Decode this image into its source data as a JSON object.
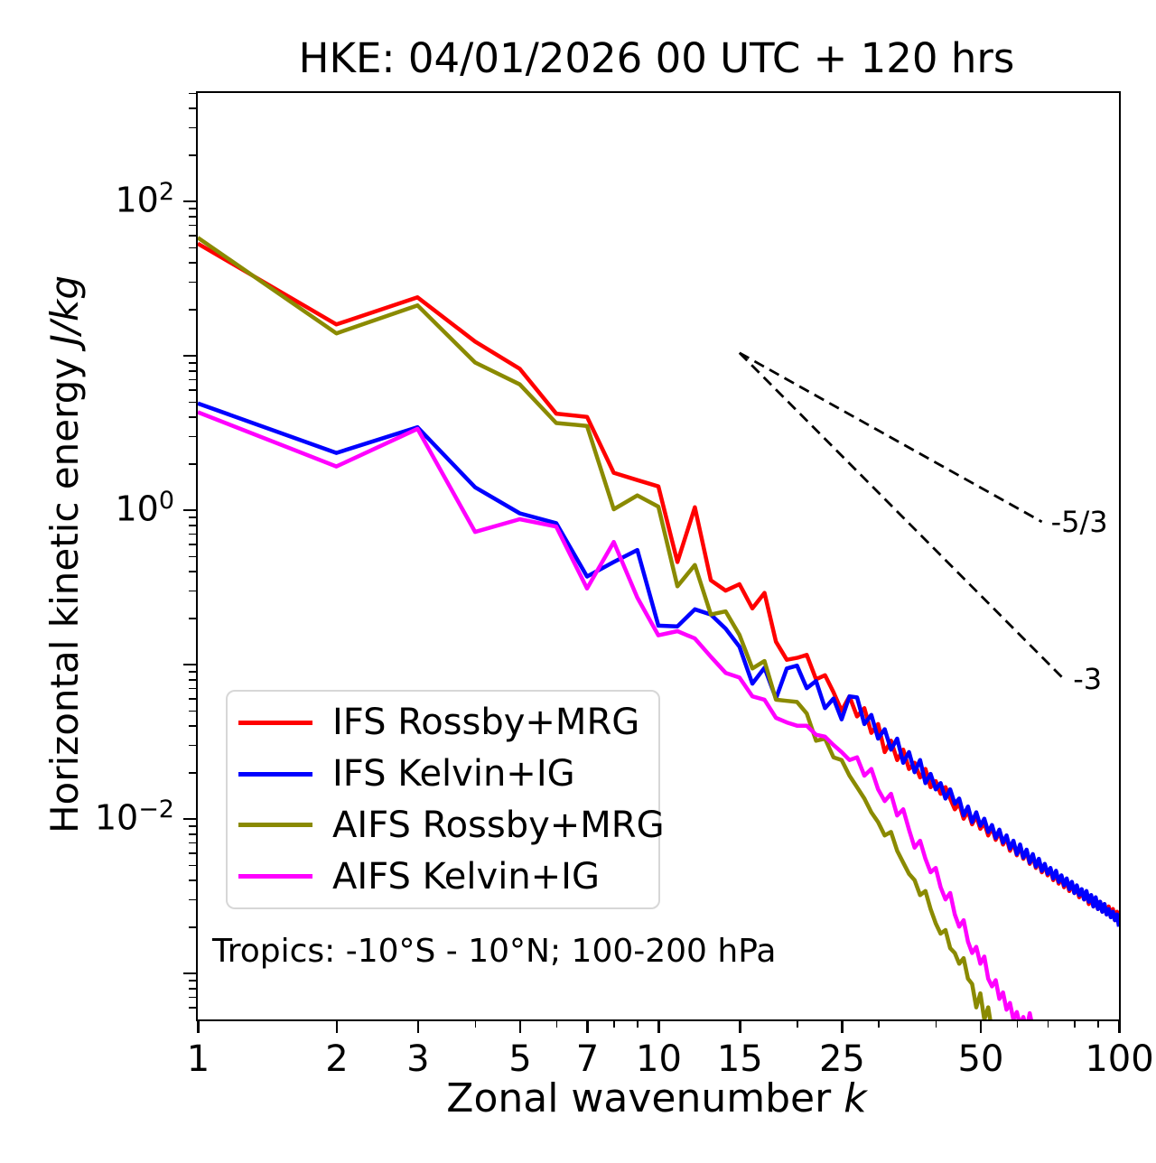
{
  "title": "HKE: 04/01/2026 00 UTC + 120 hrs",
  "annotation": "Tropics: -10°S - 10°N; 100-200 hPa",
  "axes": {
    "xlabel_text": "Zonal wavenumber ",
    "xlabel_math": "k",
    "ylabel_text": "Horizontal kinetic energy ",
    "ylabel_math": "J/kg",
    "xlim": [
      1,
      100
    ],
    "ylim_log10": [
      -3.3,
      2.7
    ],
    "x_major_ticks": [
      1,
      2,
      3,
      5,
      7,
      10,
      15,
      25,
      50,
      100
    ],
    "x_major_tick_labels": [
      "1",
      "2",
      "3",
      "5",
      "7",
      "10",
      "15",
      "25",
      "50",
      "100"
    ],
    "x_minor_ticks": [
      4,
      6,
      8,
      9,
      20,
      30,
      40,
      60,
      70,
      80,
      90
    ],
    "y_major_tick_exponents": [
      2,
      1,
      0,
      -1,
      -2,
      -3
    ],
    "y_labeled_exponents": [
      2,
      0,
      -2
    ],
    "grid": "off",
    "legend_position": "lower-left-inside"
  },
  "chart_data": {
    "type": "line",
    "xscale": "log",
    "yscale": "log",
    "title": "HKE: 04/01/2026 00 UTC + 120 hrs",
    "xlabel": "Zonal wavenumber k",
    "ylabel": "Horizontal kinetic energy J/kg",
    "x": [
      1,
      2,
      3,
      4,
      5,
      6,
      7,
      8,
      9,
      10,
      11,
      12,
      13,
      14,
      15,
      16,
      17,
      18,
      19,
      20,
      21,
      22,
      23,
      24,
      25,
      26,
      27,
      28,
      29,
      30,
      31,
      32,
      33,
      34,
      35,
      36,
      37,
      38,
      39,
      40,
      41,
      42,
      43,
      44,
      45,
      46,
      47,
      48,
      49,
      50,
      51,
      52,
      53,
      54,
      55,
      56,
      57,
      58,
      59,
      60,
      61,
      62,
      63,
      64,
      65,
      66,
      67,
      68,
      69,
      70,
      71,
      72,
      73,
      74,
      75,
      76,
      77,
      78,
      79,
      80,
      81,
      82,
      83,
      84,
      85,
      86,
      87,
      88,
      89,
      90,
      91,
      92,
      93,
      94,
      95,
      96,
      97,
      98,
      99,
      100
    ],
    "series": [
      {
        "name": "IFS Rossby+MRG",
        "color": "#ff0000",
        "values": [
          53,
          15.9,
          23.8,
          12.3,
          8.2,
          4.2,
          4.0,
          1.74,
          1.56,
          1.42,
          0.46,
          1.04,
          0.35,
          0.3,
          0.33,
          0.23,
          0.29,
          0.14,
          0.107,
          0.11,
          0.115,
          0.08,
          0.085,
          0.066,
          0.05,
          0.062,
          0.046,
          0.052,
          0.036,
          0.041,
          0.027,
          0.032,
          0.024,
          0.028,
          0.021,
          0.023,
          0.0185,
          0.021,
          0.016,
          0.0175,
          0.0145,
          0.016,
          0.0135,
          0.0115,
          0.0125,
          0.01,
          0.0112,
          0.0092,
          0.0104,
          0.0086,
          0.0094,
          0.0078,
          0.0088,
          0.0073,
          0.0082,
          0.0068,
          0.0075,
          0.0062,
          0.007,
          0.0058,
          0.0066,
          0.0055,
          0.0061,
          0.0051,
          0.0057,
          0.0048,
          0.0053,
          0.0045,
          0.005,
          0.0043,
          0.0047,
          0.004,
          0.0044,
          0.0038,
          0.0042,
          0.0036,
          0.004,
          0.0034,
          0.0038,
          0.0033,
          0.0036,
          0.0031,
          0.0034,
          0.003,
          0.0033,
          0.0028,
          0.0031,
          0.0027,
          0.003,
          0.0026,
          0.0029,
          0.0025,
          0.0028,
          0.0024,
          0.0027,
          0.0023,
          0.0026,
          0.0022,
          0.0025,
          0.0021
        ]
      },
      {
        "name": "IFS Kelvin+IG",
        "color": "#0000ff",
        "values": [
          4.9,
          2.34,
          3.43,
          1.4,
          0.95,
          0.82,
          0.37,
          0.46,
          0.55,
          0.178,
          0.176,
          0.227,
          0.21,
          0.17,
          0.13,
          0.075,
          0.095,
          0.06,
          0.094,
          0.098,
          0.07,
          0.078,
          0.052,
          0.06,
          0.044,
          0.062,
          0.061,
          0.041,
          0.047,
          0.033,
          0.038,
          0.028,
          0.033,
          0.023,
          0.027,
          0.02,
          0.024,
          0.017,
          0.0195,
          0.0155,
          0.017,
          0.0135,
          0.0155,
          0.0125,
          0.0135,
          0.0105,
          0.012,
          0.0095,
          0.011,
          0.009,
          0.01,
          0.0082,
          0.0091,
          0.0075,
          0.0085,
          0.007,
          0.0078,
          0.0064,
          0.0072,
          0.0059,
          0.0068,
          0.0056,
          0.0063,
          0.0052,
          0.0059,
          0.0049,
          0.0055,
          0.0046,
          0.0051,
          0.0044,
          0.0048,
          0.0041,
          0.0046,
          0.0039,
          0.0043,
          0.0037,
          0.0041,
          0.0035,
          0.0039,
          0.0033,
          0.0037,
          0.0032,
          0.0035,
          0.003,
          0.0034,
          0.0029,
          0.0032,
          0.0027,
          0.0031,
          0.0026,
          0.0029,
          0.0025,
          0.0028,
          0.0024,
          0.0026,
          0.0023,
          0.0025,
          0.0022,
          0.0024,
          0.002
        ]
      },
      {
        "name": "AIFS Rossby+MRG",
        "color": "#8a8a00",
        "values": [
          58,
          13.9,
          21.1,
          9.0,
          6.5,
          3.65,
          3.5,
          1.01,
          1.24,
          1.05,
          0.32,
          0.44,
          0.21,
          0.22,
          0.155,
          0.094,
          0.105,
          0.059,
          0.058,
          0.057,
          0.048,
          0.032,
          0.033,
          0.025,
          0.024,
          0.019,
          0.016,
          0.0135,
          0.011,
          0.0095,
          0.0078,
          0.0082,
          0.0062,
          0.0052,
          0.0044,
          0.004,
          0.0032,
          0.0034,
          0.0026,
          0.0021,
          0.0018,
          0.0019,
          0.00145,
          0.00135,
          0.00115,
          0.00125,
          0.00092,
          0.00085,
          0.0006,
          0.00074,
          0.0005,
          0.0006,
          0.00042
        ]
      },
      {
        "name": "AIFS Kelvin+IG",
        "color": "#ff00ff",
        "values": [
          4.29,
          1.91,
          3.35,
          0.72,
          0.87,
          0.78,
          0.31,
          0.62,
          0.27,
          0.154,
          0.164,
          0.147,
          0.112,
          0.088,
          0.082,
          0.062,
          0.059,
          0.045,
          0.042,
          0.04,
          0.04,
          0.035,
          0.034,
          0.03,
          0.027,
          0.024,
          0.025,
          0.019,
          0.021,
          0.0155,
          0.013,
          0.0145,
          0.0105,
          0.0115,
          0.0085,
          0.0065,
          0.0072,
          0.0055,
          0.0045,
          0.0048,
          0.0036,
          0.003,
          0.0033,
          0.0024,
          0.002,
          0.0022,
          0.0016,
          0.00135,
          0.00148,
          0.00115,
          0.00128,
          0.00092,
          0.00082,
          0.0009,
          0.00068,
          0.00075,
          0.00058,
          0.00064,
          0.0005,
          0.00056,
          0.00046,
          0.00052,
          0.00043,
          0.00055,
          0.00044,
          0.00038
        ]
      }
    ],
    "reference_lines": [
      {
        "label": "-5/3",
        "k_start": 15,
        "E_start": 10.4,
        "k_end": 68,
        "slope": -1.6667,
        "style": "dashed",
        "color": "#000000"
      },
      {
        "label": "-3",
        "k_start": 15,
        "E_start": 10.4,
        "k_end": 76,
        "slope": -3,
        "style": "dashed",
        "color": "#000000"
      }
    ]
  },
  "legend": {
    "entries": [
      "IFS Rossby+MRG",
      "IFS Kelvin+IG",
      "AIFS Rossby+MRG",
      "AIFS Kelvin+IG"
    ]
  }
}
